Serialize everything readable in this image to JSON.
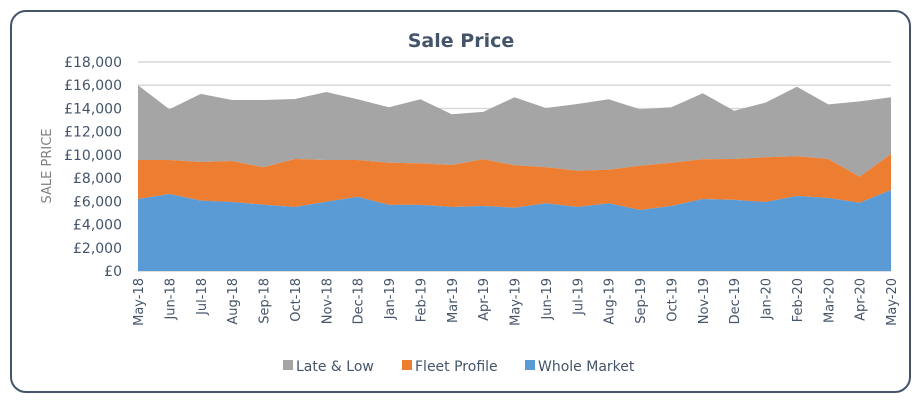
{
  "chart_data": {
    "type": "area",
    "stacked": true,
    "title": "Sale Price",
    "xlabel": "",
    "ylabel": "SALE PRICE",
    "ylim": [
      0,
      18000
    ],
    "y_ticks": [
      0,
      2000,
      4000,
      6000,
      8000,
      10000,
      12000,
      14000,
      16000,
      18000
    ],
    "y_tick_labels": [
      "£0",
      "£2,000",
      "£4,000",
      "£6,000",
      "£8,000",
      "£10,000",
      "£12,000",
      "£14,000",
      "£16,000",
      "£18,000"
    ],
    "grid": true,
    "legend_position": "bottom",
    "categories": [
      "May-18",
      "Jun-18",
      "Jul-18",
      "Aug-18",
      "Sep-18",
      "Oct-18",
      "Nov-18",
      "Dec-18",
      "Jan-19",
      "Feb-19",
      "Mar-19",
      "Apr-19",
      "May-19",
      "Jun-19",
      "Jul-19",
      "Aug-19",
      "Sep-19",
      "Oct-19",
      "Nov-19",
      "Dec-19",
      "Jan-20",
      "Feb-20",
      "Mar-20",
      "Apr-20",
      "May-20"
    ],
    "series": [
      {
        "name": "Whole Market",
        "color": "#5B9BD5",
        "values": [
          6200,
          6630,
          6060,
          5940,
          5710,
          5510,
          5970,
          6400,
          5690,
          5690,
          5510,
          5600,
          5450,
          5830,
          5510,
          5830,
          5250,
          5600,
          6200,
          6120,
          5940,
          6460,
          6290,
          5880,
          6980
        ]
      },
      {
        "name": "Fleet Profile",
        "color": "#ED7D31",
        "values": [
          3360,
          2930,
          3330,
          3530,
          3220,
          4140,
          3590,
          3160,
          3640,
          3580,
          3620,
          4020,
          3650,
          3100,
          3130,
          2890,
          3820,
          3730,
          3420,
          3530,
          3850,
          3420,
          3360,
          2240,
          3100
        ]
      },
      {
        "name": "Late & Low",
        "color": "#A5A5A5",
        "values": [
          6440,
          4370,
          5860,
          5260,
          5800,
          5160,
          5860,
          5230,
          4770,
          5520,
          4370,
          4080,
          5860,
          5110,
          5740,
          6070,
          4860,
          4770,
          5680,
          4160,
          4710,
          5990,
          4700,
          6490,
          4880
        ]
      }
    ],
    "legend": [
      "Late & Low",
      "Fleet Profile",
      "Whole Market"
    ]
  }
}
